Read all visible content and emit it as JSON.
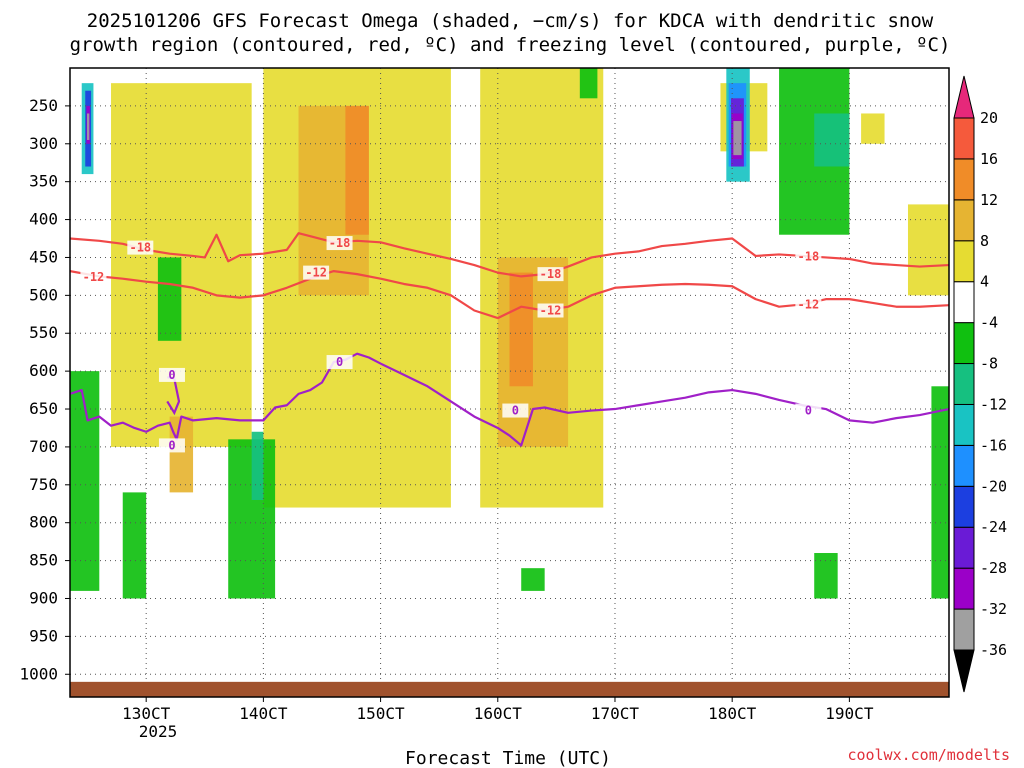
{
  "chart_data": {
    "type": "heatmap",
    "title_line1": "2025101206 GFS Forecast Omega (shaded, −cm/s) for KDCA with dendritic snow",
    "title_line2": "growth region (contoured, red, ºC) and freezing level (contoured, purple, ºC)",
    "xlabel": "Forecast Time (UTC)",
    "year_label": "2025",
    "credit": "coolwx.com/modelts",
    "x_range_hours": [
      -6.5,
      68.5
    ],
    "x_ticks": [
      {
        "label": "130CT",
        "hour": 0
      },
      {
        "label": "140CT",
        "hour": 10
      },
      {
        "label": "150CT",
        "hour": 20
      },
      {
        "label": "160CT",
        "hour": 30
      },
      {
        "label": "170CT",
        "hour": 40
      },
      {
        "label": "180CT",
        "hour": 50
      },
      {
        "label": "190CT",
        "hour": 60
      }
    ],
    "y_ticks": [
      250,
      300,
      350,
      400,
      450,
      500,
      550,
      600,
      650,
      700,
      750,
      800,
      850,
      900,
      950,
      1000
    ],
    "y_range_hpa": [
      200,
      1030
    ],
    "colorbar": {
      "levels": [
        -36,
        -32,
        -28,
        -24,
        -20,
        -16,
        -12,
        -8,
        -4,
        4,
        8,
        12,
        16,
        20
      ],
      "colors": [
        "#000000",
        "#a0a0a0",
        "#9b00c8",
        "#6a1bd6",
        "#1c3fe0",
        "#1e90ff",
        "#19c3c3",
        "#16c080",
        "#10c010",
        "#ffffff",
        "#e6dc32",
        "#e6b432",
        "#f08c28",
        "#f55a3c",
        "#e6287a"
      ]
    },
    "series": [
      {
        "name": "-18C isotherm",
        "color": "#f04848",
        "label": "-18",
        "x": [
          -6.5,
          -4,
          -2,
          0,
          2,
          4,
          5,
          6,
          7,
          8,
          10,
          12,
          13,
          14,
          16,
          18,
          20,
          22,
          24,
          26,
          28,
          30,
          32,
          34,
          36,
          38,
          40,
          42,
          44,
          46,
          48,
          50,
          52,
          54,
          56,
          58,
          60,
          62,
          64,
          66,
          68.5
        ],
        "y": [
          425,
          428,
          432,
          440,
          445,
          448,
          450,
          420,
          455,
          447,
          445,
          440,
          418,
          422,
          430,
          428,
          430,
          438,
          445,
          452,
          460,
          470,
          475,
          472,
          462,
          450,
          445,
          442,
          435,
          432,
          428,
          425,
          448,
          446,
          448,
          450,
          452,
          458,
          460,
          462,
          460
        ]
      },
      {
        "name": "-12C isotherm",
        "color": "#f04848",
        "label": "-12",
        "x": [
          -6.5,
          -4,
          -2,
          0,
          2,
          4,
          6,
          8,
          10,
          12,
          14,
          16,
          18,
          20,
          22,
          24,
          26,
          28,
          30,
          32,
          34,
          36,
          38,
          40,
          42,
          44,
          46,
          48,
          50,
          52,
          54,
          56,
          58,
          60,
          62,
          64,
          66,
          68.5
        ],
        "y": [
          468,
          475,
          478,
          482,
          485,
          490,
          500,
          503,
          500,
          490,
          478,
          468,
          472,
          478,
          485,
          490,
          500,
          520,
          530,
          515,
          520,
          515,
          500,
          490,
          488,
          486,
          485,
          486,
          488,
          505,
          515,
          512,
          505,
          505,
          510,
          515,
          515,
          513
        ]
      },
      {
        "name": "0C freezing level",
        "color": "#a020c8",
        "label": "0",
        "x": [
          -6.5,
          -5.5,
          -5,
          -4,
          -3,
          -2,
          -1,
          0,
          1,
          2,
          2.3,
          2.6,
          3,
          4,
          6,
          8,
          10,
          11,
          12,
          13,
          14,
          15,
          16,
          17,
          18,
          19,
          20,
          22,
          24,
          26,
          28,
          30,
          31,
          32,
          33,
          34,
          36,
          38,
          40,
          42,
          44,
          46,
          48,
          50,
          52,
          54,
          56,
          58,
          60,
          62,
          64,
          66,
          68.5
        ],
        "y": [
          630,
          625,
          665,
          660,
          672,
          668,
          675,
          680,
          672,
          668,
          680,
          690,
          660,
          665,
          662,
          665,
          665,
          648,
          645,
          630,
          625,
          615,
          588,
          585,
          577,
          582,
          590,
          605,
          620,
          640,
          660,
          675,
          685,
          698,
          650,
          648,
          655,
          652,
          650,
          645,
          640,
          635,
          628,
          625,
          630,
          638,
          645,
          650,
          665,
          668,
          662,
          658,
          650
        ]
      }
    ],
    "freezing_loop": {
      "x": [
        1.8,
        2.4,
        2.8,
        2.4,
        1.8
      ],
      "y": [
        608,
        610,
        640,
        655,
        640
      ]
    },
    "contour_labels": [
      {
        "text": "-18",
        "series": 0,
        "hour": -0.5,
        "hpa": 437
      },
      {
        "text": "-18",
        "series": 0,
        "hour": 16.5,
        "hpa": 431
      },
      {
        "text": "-18",
        "series": 0,
        "hour": 34.5,
        "hpa": 472
      },
      {
        "text": "-18",
        "series": 0,
        "hour": 56.5,
        "hpa": 449
      },
      {
        "text": "-12",
        "series": 1,
        "hour": -4.5,
        "hpa": 476
      },
      {
        "text": "-12",
        "series": 1,
        "hour": 14.5,
        "hpa": 470
      },
      {
        "text": "-12",
        "series": 1,
        "hour": 34.5,
        "hpa": 520
      },
      {
        "text": "-12",
        "series": 1,
        "hour": 56.5,
        "hpa": 512
      },
      {
        "text": "0",
        "series": 2,
        "hour": 2.2,
        "hpa": 605
      },
      {
        "text": "0",
        "series": 2,
        "hour": 2.2,
        "hpa": 698
      },
      {
        "text": "0",
        "series": 2,
        "hour": 16.5,
        "hpa": 588
      },
      {
        "text": "0",
        "series": 2,
        "hour": 31.5,
        "hpa": 652
      },
      {
        "text": "0",
        "series": 2,
        "hour": 56.5,
        "hpa": 652
      }
    ],
    "shaded_regions": [
      {
        "omega": 4,
        "hour": [
          -3,
          9
        ],
        "hpa": [
          220,
          700
        ]
      },
      {
        "omega": 4,
        "hour": [
          10,
          26
        ],
        "hpa": [
          200,
          780
        ]
      },
      {
        "omega": 4,
        "hour": [
          28.5,
          39
        ],
        "hpa": [
          200,
          780
        ]
      },
      {
        "omega": 4,
        "hour": [
          49,
          53
        ],
        "hpa": [
          220,
          310
        ]
      },
      {
        "omega": 4,
        "hour": [
          61,
          63
        ],
        "hpa": [
          260,
          300
        ]
      },
      {
        "omega": 4,
        "hour": [
          65,
          68.5
        ],
        "hpa": [
          380,
          500
        ]
      },
      {
        "omega": 8,
        "hour": [
          13,
          19
        ],
        "hpa": [
          250,
          500
        ]
      },
      {
        "omega": 8,
        "hour": [
          30,
          36
        ],
        "hpa": [
          450,
          700
        ]
      },
      {
        "omega": 8,
        "hour": [
          2,
          4
        ],
        "hpa": [
          660,
          760
        ]
      },
      {
        "omega": 12,
        "hour": [
          17,
          19
        ],
        "hpa": [
          250,
          420
        ]
      },
      {
        "omega": 12,
        "hour": [
          31,
          33
        ],
        "hpa": [
          470,
          620
        ]
      },
      {
        "omega": -8,
        "hour": [
          -6.5,
          -4
        ],
        "hpa": [
          600,
          890
        ]
      },
      {
        "omega": -8,
        "hour": [
          1,
          3
        ],
        "hpa": [
          450,
          560
        ]
      },
      {
        "omega": -8,
        "hour": [
          7,
          11
        ],
        "hpa": [
          690,
          900
        ]
      },
      {
        "omega": -8,
        "hour": [
          54,
          60
        ],
        "hpa": [
          200,
          420
        ]
      },
      {
        "omega": -8,
        "hour": [
          -2,
          0
        ],
        "hpa": [
          760,
          900
        ]
      },
      {
        "omega": -8,
        "hour": [
          37,
          38.5
        ],
        "hpa": [
          200,
          240
        ]
      },
      {
        "omega": -8,
        "hour": [
          57,
          59
        ],
        "hpa": [
          840,
          900
        ]
      },
      {
        "omega": -8,
        "hour": [
          32,
          34
        ],
        "hpa": [
          860,
          890
        ]
      },
      {
        "omega": -8,
        "hour": [
          67,
          68.5
        ],
        "hpa": [
          620,
          900
        ]
      },
      {
        "omega": -12,
        "hour": [
          57,
          60
        ],
        "hpa": [
          260,
          330
        ]
      },
      {
        "omega": -12,
        "hour": [
          9,
          10
        ],
        "hpa": [
          680,
          770
        ]
      },
      {
        "omega": -16,
        "hour": [
          -5.5,
          -4.5
        ],
        "hpa": [
          220,
          340
        ]
      },
      {
        "omega": -16,
        "hour": [
          49.5,
          51.5
        ],
        "hpa": [
          200,
          350
        ]
      },
      {
        "omega": -20,
        "hour": [
          49.7,
          51.2
        ],
        "hpa": [
          220,
          330
        ]
      },
      {
        "omega": -24,
        "hour": [
          -5.2,
          -4.7
        ],
        "hpa": [
          230,
          330
        ]
      },
      {
        "omega": -28,
        "hour": [
          49.9,
          51
        ],
        "hpa": [
          240,
          330
        ]
      },
      {
        "omega": -32,
        "hour": [
          50,
          50.9
        ],
        "hpa": [
          260,
          320
        ]
      },
      {
        "omega": -36,
        "hour": [
          50.1,
          50.8
        ],
        "hpa": [
          270,
          315
        ]
      },
      {
        "omega": -32,
        "hour": [
          -5.1,
          -4.8
        ],
        "hpa": [
          250,
          300
        ]
      },
      {
        "omega": -36,
        "hour": [
          -5.05,
          -4.85
        ],
        "hpa": [
          260,
          295
        ]
      }
    ],
    "terrain_color": "#a0522d"
  }
}
